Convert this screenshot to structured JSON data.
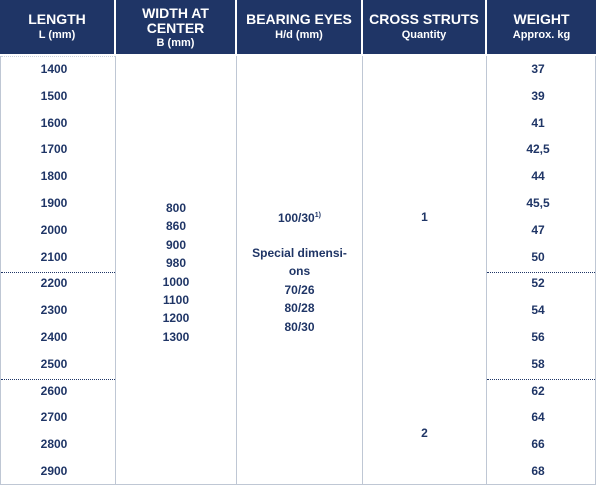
{
  "headers": {
    "length": {
      "title": "LENGTH",
      "sub": "L (mm)"
    },
    "width": {
      "title1": "WIDTH AT",
      "title2": "CENTER",
      "sub": "B (mm)"
    },
    "bearing": {
      "title": "BEARING EYES",
      "sub": "H/d (mm)"
    },
    "struts": {
      "title": "CROSS STRUTS",
      "sub": "Quantity"
    },
    "weight": {
      "title": "WEIGHT",
      "sub": "Approx. kg"
    }
  },
  "lengths": [
    "1400",
    "1500",
    "1600",
    "1700",
    "1800",
    "1900",
    "2000",
    "2100",
    "2200",
    "2300",
    "2400",
    "2500",
    "2600",
    "2700",
    "2800",
    "2900"
  ],
  "weights": [
    "37",
    "39",
    "41",
    "42,5",
    "44",
    "45,5",
    "47",
    "50",
    "52",
    "54",
    "56",
    "58",
    "62",
    "64",
    "66",
    "68"
  ],
  "widths": [
    "800",
    "860",
    "900",
    "980",
    "1000",
    "1100",
    "1200",
    "1300"
  ],
  "bearing": {
    "standard": "100/30",
    "footnote": "1)",
    "special_line1": "Special dimensi-",
    "special_line2": "ons",
    "options": [
      "70/26",
      "80/28",
      "80/30"
    ]
  },
  "struts": {
    "group1": "1",
    "group2": "2"
  }
}
